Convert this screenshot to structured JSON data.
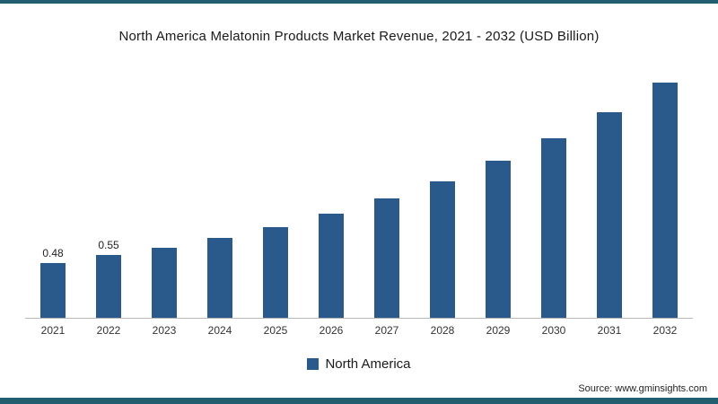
{
  "frame": {
    "accent_color": "#235e70"
  },
  "source": "Source: www.gminsights.com",
  "chart_data": {
    "type": "bar",
    "title": "North America Melatonin Products Market Revenue, 2021 - 2032 (USD Billion)",
    "categories": [
      "2021",
      "2022",
      "2023",
      "2024",
      "2025",
      "2026",
      "2027",
      "2028",
      "2029",
      "2030",
      "2031",
      "2032"
    ],
    "values": [
      0.48,
      0.55,
      0.62,
      0.7,
      0.8,
      0.92,
      1.05,
      1.2,
      1.38,
      1.58,
      1.81,
      2.07
    ],
    "data_labels": [
      "0.48",
      "0.55",
      null,
      null,
      null,
      null,
      null,
      null,
      null,
      null,
      null,
      null
    ],
    "series_name": "North America",
    "bar_color": "#2a5a8b",
    "ylim": [
      0,
      2.3
    ],
    "grid": false,
    "legend_position": "bottom",
    "xlabel": "",
    "ylabel": ""
  }
}
